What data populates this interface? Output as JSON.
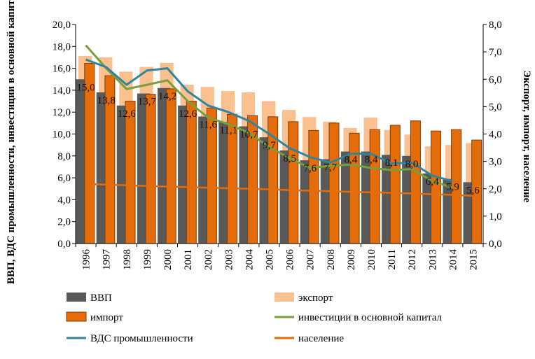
{
  "chart_data": {
    "type": "bar",
    "categories": [
      "1996",
      "1997",
      "1998",
      "1999",
      "2000",
      "2001",
      "2002",
      "2003",
      "2004",
      "2005",
      "2006",
      "2007",
      "2008",
      "2009",
      "2010",
      "2011",
      "2012",
      "2013",
      "2014",
      "2015"
    ],
    "y_left": {
      "label": "ВВП, ВДС промышленности, инвестиции в основной капитал",
      "ylim": [
        0,
        20
      ],
      "ticks": [
        "0,0",
        "2,0",
        "4,0",
        "6,0",
        "8,0",
        "10,0",
        "12,0",
        "14,0",
        "16,0",
        "18,0",
        "20,0"
      ]
    },
    "y_right": {
      "label": "Экспорт, импорт, население",
      "ylim": [
        0,
        8
      ],
      "ticks": [
        "0,0",
        "1,0",
        "2,0",
        "3,0",
        "4,0",
        "5,0",
        "6,0",
        "7,0",
        "8,0"
      ]
    },
    "series": [
      {
        "name": "ВВП",
        "type": "bar",
        "axis": "left",
        "color": "#595959",
        "values": [
          15.0,
          13.8,
          12.6,
          13.7,
          14.2,
          12.6,
          11.6,
          11.1,
          10.7,
          9.7,
          8.5,
          7.6,
          7.7,
          8.4,
          8.4,
          8.1,
          8.0,
          6.4,
          5.9,
          5.6
        ],
        "labels": [
          "15,0",
          "13,8",
          "12,6",
          "13,7",
          "14,2",
          "12,6",
          "11,6",
          "11,1",
          "10,7",
          "9,7",
          "8,5",
          "7,6",
          "7,7",
          "8,4",
          "8,4",
          "8,1",
          "8,0",
          "6,4",
          "5,9",
          "5,6"
        ]
      },
      {
        "name": "экспорт",
        "type": "bar",
        "axis": "right",
        "color": "#fac090",
        "values": [
          6.85,
          6.8,
          6.28,
          6.45,
          6.6,
          5.8,
          5.72,
          5.57,
          5.52,
          5.2,
          4.88,
          4.62,
          4.45,
          4.22,
          4.6,
          4.15,
          3.98,
          3.55,
          3.6,
          3.67
        ]
      },
      {
        "name": "импорт",
        "type": "bar",
        "axis": "right",
        "color": "#e46c0a",
        "values": [
          6.58,
          6.13,
          5.2,
          5.45,
          5.65,
          5.2,
          4.95,
          4.72,
          4.67,
          4.63,
          4.45,
          4.13,
          4.4,
          4.03,
          4.16,
          4.32,
          4.48,
          4.11,
          4.16,
          3.78
        ]
      },
      {
        "name": "инвестиции в основной капитал",
        "type": "line",
        "axis": "left",
        "color": "#77a03a",
        "values": [
          18.1,
          16.0,
          14.1,
          14.5,
          14.9,
          13.0,
          11.5,
          10.9,
          10.1,
          8.8,
          7.8,
          6.9,
          7.1,
          7.2,
          6.9,
          6.7,
          6.8,
          5.7,
          5.1,
          null
        ]
      },
      {
        "name": "ВДС промышленности",
        "type": "line",
        "axis": "left",
        "color": "#31849b",
        "values": [
          16.8,
          16.1,
          14.5,
          15.8,
          16.0,
          13.9,
          12.6,
          12.0,
          11.2,
          10.0,
          8.7,
          7.9,
          7.4,
          8.2,
          8.2,
          7.3,
          7.4,
          6.2,
          5.7,
          null
        ]
      },
      {
        "name": "население",
        "type": "line",
        "axis": "right",
        "color": "#e46c0a",
        "values": [
          2.18,
          2.15,
          2.13,
          2.1,
          2.08,
          2.06,
          2.04,
          2.02,
          2.0,
          1.98,
          1.95,
          1.93,
          1.91,
          1.89,
          1.87,
          1.85,
          1.83,
          1.8,
          1.78,
          1.74
        ]
      }
    ],
    "legend": {
      "placement": "bottom",
      "items": [
        {
          "name": "ВВП",
          "swatch": "bar",
          "color": "#595959"
        },
        {
          "name": "экспорт",
          "swatch": "bar",
          "color": "#fac090"
        },
        {
          "name": "импорт",
          "swatch": "bar",
          "color": "#e46c0a"
        },
        {
          "name": "инвестиции в основной капитал",
          "swatch": "line",
          "color": "#77a03a"
        },
        {
          "name": "ВДС промышленности",
          "swatch": "line",
          "color": "#31849b"
        },
        {
          "name": "население",
          "swatch": "line",
          "color": "#e46c0a"
        }
      ]
    },
    "grid": false
  }
}
